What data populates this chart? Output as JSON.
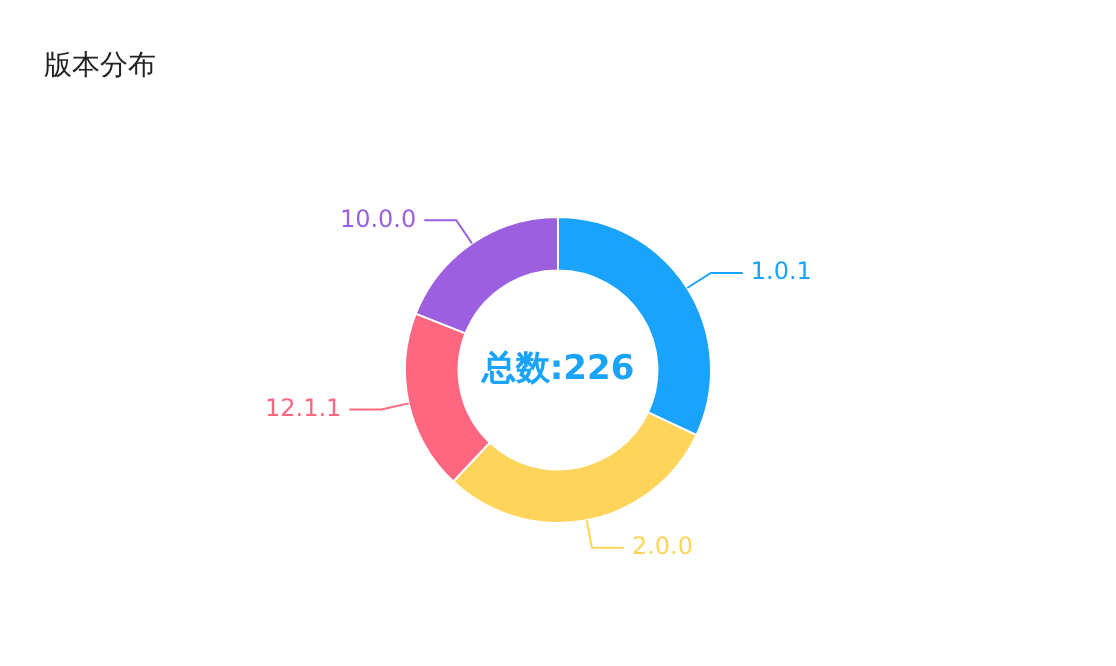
{
  "chart_data": {
    "type": "donut",
    "title": "版本分布",
    "categories": [
      "1.0.1",
      "2.0.0",
      "12.1.1",
      "10.0.0"
    ],
    "values": [
      32,
      30,
      19,
      19
    ],
    "colors": [
      "#1aa3fb",
      "#ffd45a",
      "#ff6680",
      "#9b5fe0"
    ],
    "annotations": [
      "总数:226"
    ]
  }
}
